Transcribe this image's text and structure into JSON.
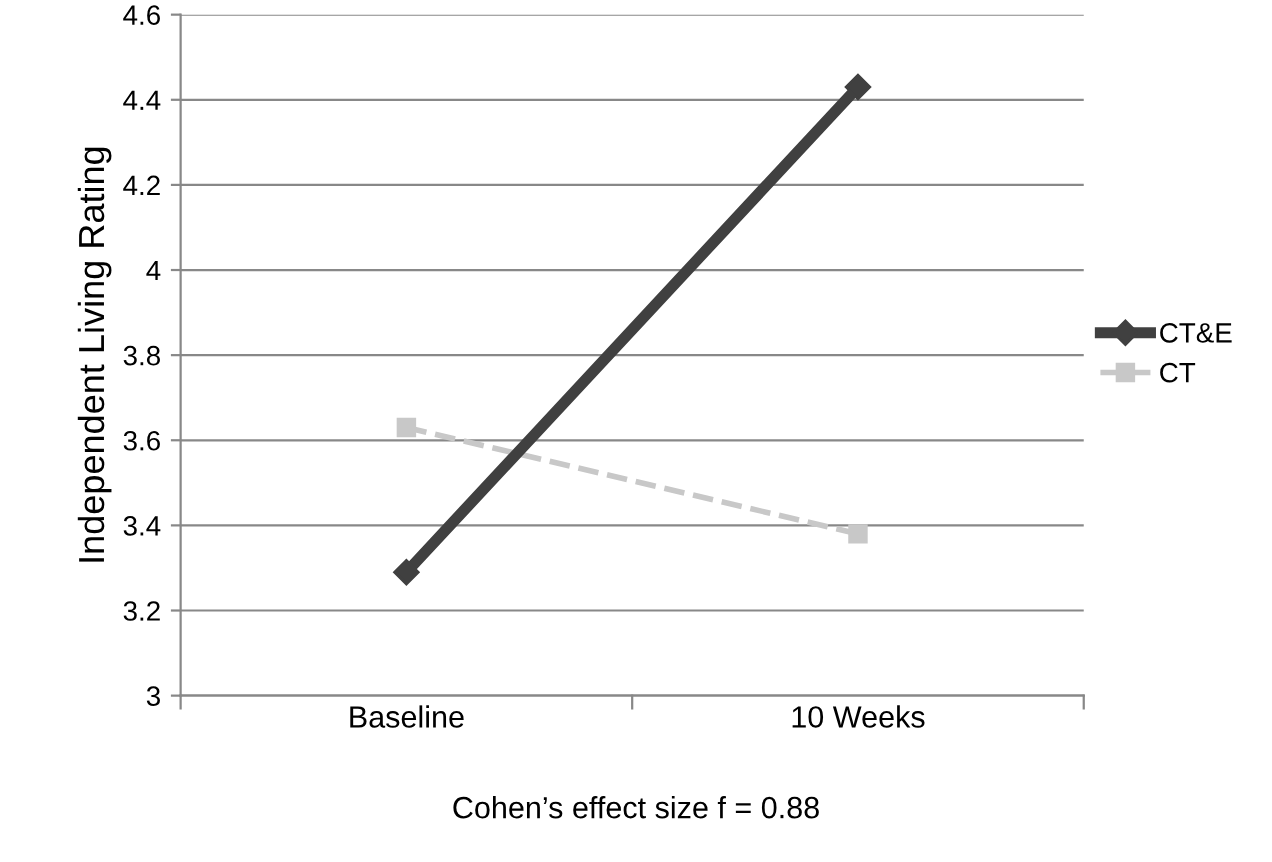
{
  "chart_data": {
    "type": "line",
    "ylabel": "Independent Living Rating",
    "categories": [
      "Baseline",
      "10 Weeks"
    ],
    "series": [
      {
        "name": "CT&E",
        "color": "#404040",
        "values": [
          3.29,
          4.43
        ],
        "marker": "diamond",
        "line_style": "solid"
      },
      {
        "name": "CT",
        "color": "#c8c8c8",
        "values": [
          3.63,
          3.38
        ],
        "marker": "square",
        "line_style": "dashed"
      }
    ],
    "ylim": [
      3,
      4.6
    ],
    "yticks": [
      3,
      3.2,
      3.4,
      3.6,
      3.8,
      4,
      4.2,
      4.4,
      4.6
    ],
    "grid": "y",
    "legend": "right",
    "annotations": [
      "Cohen’s effect size f = 0.88"
    ]
  }
}
